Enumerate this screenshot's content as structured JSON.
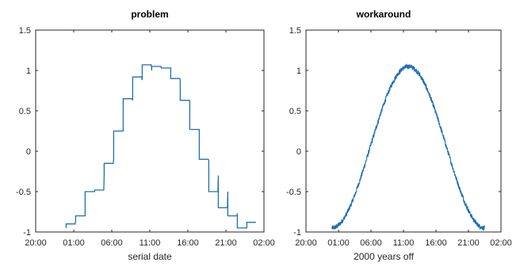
{
  "colors": {
    "line": "#1f6fb2",
    "axes": "#262626",
    "background": "#ffffff"
  },
  "chart_data": [
    {
      "type": "line",
      "title": "problem",
      "xlabel": "serial date",
      "ylabel": "",
      "x_tick_labels": [
        "20:00",
        "01:00",
        "06:00",
        "11:00",
        "16:00",
        "21:00",
        "02:00"
      ],
      "x_tick_hours": [
        -4,
        1,
        6,
        11,
        16,
        21,
        26
      ],
      "xlim_hours": [
        -4,
        26
      ],
      "y_ticks": [
        -1,
        -0.5,
        0,
        0.5,
        1,
        1.5
      ],
      "y_tick_labels": [
        "-1",
        "-0.5",
        "0",
        "0.5",
        "1",
        "1.5"
      ],
      "ylim": [
        -1,
        1.5
      ],
      "grid": false,
      "box": true,
      "series": [
        {
          "style": "staircase",
          "x_hours": [
            0.0,
            1.25,
            2.5,
            3.75,
            5.0,
            6.25,
            7.5,
            8.75,
            10.0,
            11.25,
            12.5,
            13.75,
            15.0,
            16.25,
            17.5,
            18.75,
            20.0,
            21.25,
            22.5,
            23.75
          ],
          "y_start": [
            -0.95,
            -0.85,
            -0.8,
            -0.5,
            -0.3,
            -0.1,
            0.25,
            0.63,
            0.88,
            1.0,
            1.04,
            1.03,
            0.87,
            0.62,
            0.27,
            -0.12,
            -0.3,
            -0.5,
            -0.77,
            -0.95
          ],
          "y_end": [
            -0.9,
            -0.8,
            -0.5,
            -0.48,
            -0.15,
            0.25,
            0.65,
            0.92,
            1.07,
            1.05,
            1.03,
            0.9,
            0.63,
            0.27,
            -0.1,
            -0.5,
            -0.7,
            -0.8,
            -0.95,
            -0.88
          ]
        }
      ]
    },
    {
      "type": "line",
      "title": "workaround",
      "xlabel": "2000 years off",
      "ylabel": "",
      "x_tick_labels": [
        "20:00",
        "01:00",
        "06:00",
        "11:00",
        "16:00",
        "21:00",
        "02:00"
      ],
      "x_tick_hours": [
        -4,
        1,
        6,
        11,
        16,
        21,
        26
      ],
      "xlim_hours": [
        -4,
        26
      ],
      "y_ticks": [
        -1,
        -0.5,
        0,
        0.5,
        1,
        1.5
      ],
      "y_tick_labels": [
        "-1",
        "-0.5",
        "0",
        "0.5",
        "1",
        "1.5"
      ],
      "ylim": [
        -1,
        1.5
      ],
      "grid": false,
      "box": true,
      "series": [
        {
          "style": "noisy-cosine",
          "x_start_hours": 0.0,
          "x_end_hours": 23.5,
          "peak_hour": 11.75,
          "amplitude": 1.0,
          "peak_value": 1.05,
          "min_value": -0.95,
          "noise": 0.03
        }
      ]
    }
  ]
}
